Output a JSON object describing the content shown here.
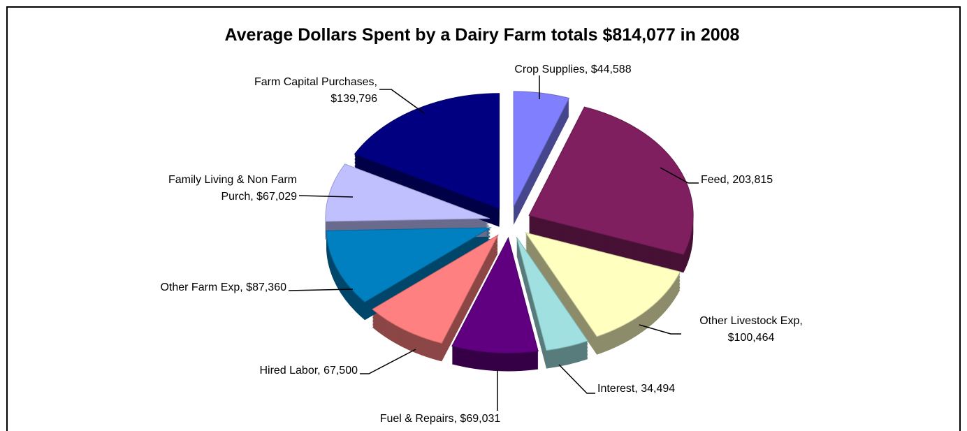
{
  "chart_data": {
    "type": "pie",
    "title": "Average Dollars Spent by a Dairy Farm totals $814,077 in 2008",
    "categories": [
      "Crop Supplies, $44,588",
      "Feed, 203,815",
      "Other Livestock Exp,\n$100,464",
      "Interest, 34,494",
      "Fuel & Repairs, $69,031",
      "Hired Labor, 67,500",
      "Other Farm Exp, $87,360",
      "Family Living & Non Farm\nPurch, $67,029",
      "Farm Capital Purchases,\n$139,796"
    ],
    "values": [
      44588,
      203815,
      100464,
      34494,
      69031,
      67500,
      87360,
      67029,
      139796
    ],
    "colors": [
      "#8080ff",
      "#7f1f5f",
      "#ffffc0",
      "#a0e0e0",
      "#600080",
      "#ff8080",
      "#0080c0",
      "#c0c0ff",
      "#000080"
    ]
  }
}
